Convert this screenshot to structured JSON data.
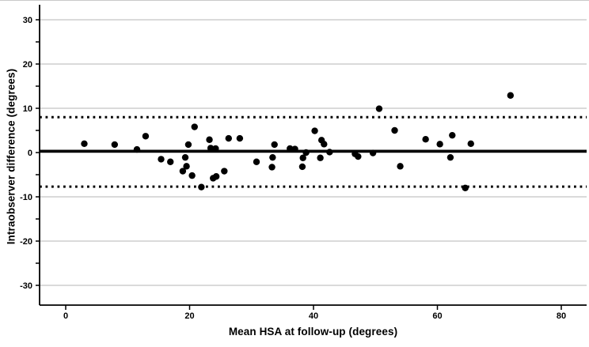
{
  "chart_data": {
    "type": "scatter",
    "subtype": "bland-altman",
    "title": "",
    "xlabel": "Mean HSA at follow-up (degrees)",
    "ylabel": "Intraobserver difference (degrees)",
    "xlim": [
      -4.3,
      84.0
    ],
    "ylim": [
      -34.5,
      32.5
    ],
    "x_ticks": [
      0,
      20,
      40,
      60,
      80
    ],
    "y_ticks": [
      -30,
      -20,
      -10,
      0,
      10,
      20,
      30
    ],
    "y_minor_tick_step": 5,
    "grid": "horizontal-only",
    "legend": "none",
    "reference_lines": {
      "mean_bias": {
        "value": 0.3,
        "style": "solid"
      },
      "upper_loa": {
        "value": 8.0,
        "style": "dotted"
      },
      "lower_loa": {
        "value": -7.7,
        "style": "dotted"
      }
    },
    "points": [
      [
        3.0,
        2.0
      ],
      [
        7.9,
        1.8
      ],
      [
        11.5,
        0.7
      ],
      [
        12.9,
        3.7
      ],
      [
        15.4,
        -1.5
      ],
      [
        16.9,
        -2.1
      ],
      [
        18.9,
        -4.2
      ],
      [
        19.3,
        -1.1
      ],
      [
        19.5,
        -3.1
      ],
      [
        19.8,
        1.8
      ],
      [
        20.4,
        -5.2
      ],
      [
        20.8,
        5.8
      ],
      [
        21.9,
        -7.8
      ],
      [
        23.2,
        2.9
      ],
      [
        23.4,
        1.0
      ],
      [
        23.8,
        -5.8
      ],
      [
        24.2,
        0.9
      ],
      [
        24.3,
        -5.4
      ],
      [
        25.6,
        -4.2
      ],
      [
        26.3,
        3.2
      ],
      [
        28.1,
        3.2
      ],
      [
        30.8,
        -2.1
      ],
      [
        33.3,
        -3.3
      ],
      [
        33.4,
        -1.1
      ],
      [
        33.7,
        1.8
      ],
      [
        36.2,
        0.9
      ],
      [
        37.0,
        0.8
      ],
      [
        38.2,
        -3.2
      ],
      [
        38.3,
        -1.2
      ],
      [
        38.8,
        0.0
      ],
      [
        40.2,
        4.9
      ],
      [
        41.1,
        -1.2
      ],
      [
        41.3,
        2.8
      ],
      [
        41.7,
        1.9
      ],
      [
        42.6,
        0.1
      ],
      [
        46.7,
        -0.3
      ],
      [
        47.2,
        -0.9
      ],
      [
        49.6,
        -0.1
      ],
      [
        50.6,
        9.9
      ],
      [
        53.1,
        5.0
      ],
      [
        54.0,
        -3.1
      ],
      [
        58.1,
        3.0
      ],
      [
        60.4,
        1.9
      ],
      [
        62.1,
        -1.1
      ],
      [
        62.4,
        3.9
      ],
      [
        64.5,
        -8.0
      ],
      [
        65.4,
        2.0
      ],
      [
        71.8,
        12.9
      ]
    ]
  },
  "colors": {
    "background": "#ffffff",
    "point": "#000000",
    "axis": "#000000",
    "gridline": "#b5b5b5",
    "reference_line": "#000000",
    "text": "#000000"
  }
}
